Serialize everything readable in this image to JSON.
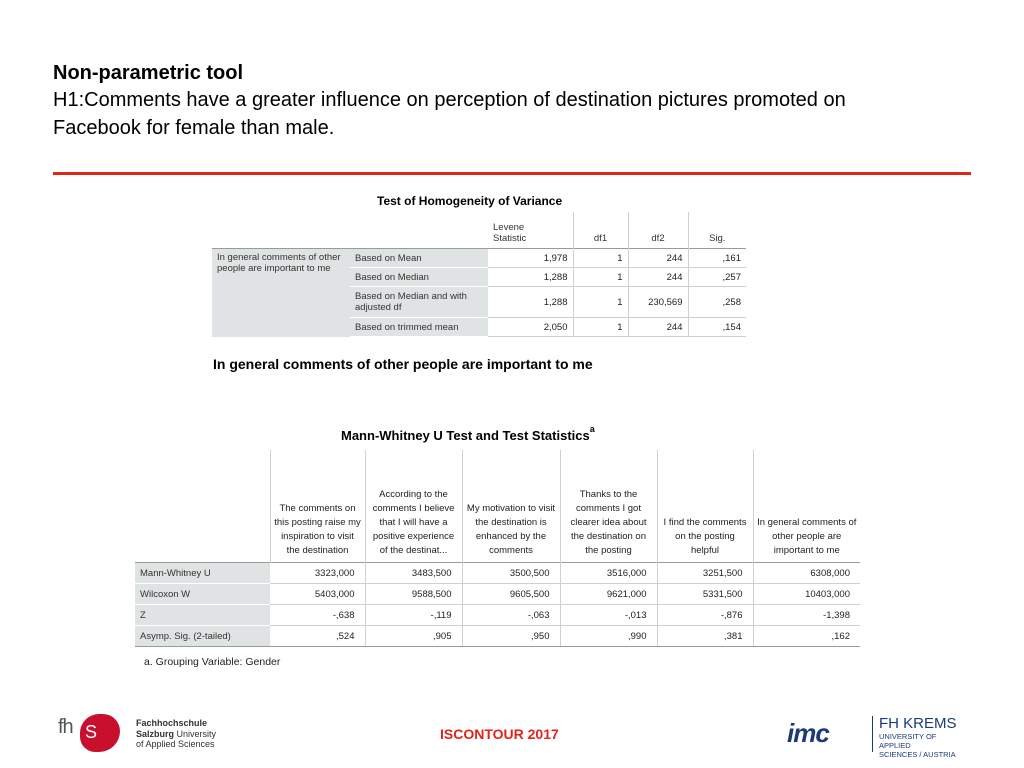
{
  "slide": {
    "title": "Non-parametric tool",
    "hypothesis_line1": "H1:Comments have a greater influence on perception of destination pictures promoted on",
    "hypothesis_line2": "Facebook for female than male."
  },
  "levene": {
    "caption": "Test of Homogeneity of Variance",
    "headers": {
      "stat_line1": "Levene",
      "stat_line2": "Statistic",
      "df1": "df1",
      "df2": "df2",
      "sig": "Sig."
    },
    "variable_label": "In general comments of other people are important to me",
    "rows": [
      {
        "label": "Based on Mean",
        "stat": "1,978",
        "df1": "1",
        "df2": "244",
        "sig": ",161"
      },
      {
        "label": "Based on Median",
        "stat": "1,288",
        "df1": "1",
        "df2": "244",
        "sig": ",257"
      },
      {
        "label": "Based on Median and with adjusted df",
        "stat": "1,288",
        "df1": "1",
        "df2": "230,569",
        "sig": ",258"
      },
      {
        "label": "Based on trimmed mean",
        "stat": "2,050",
        "df1": "1",
        "df2": "244",
        "sig": ",154"
      }
    ]
  },
  "section_heading": "In general comments of other people are important to me",
  "mann_whitney": {
    "caption": "Mann-Whitney U Test and Test Statistics",
    "caption_sup": "a",
    "columns": [
      "The comments on this posting raise my inspiration to visit the destination",
      "According to the comments I believe that I will have a positive experience of the destinat...",
      "My motivation to visit the destination is enhanced by the comments",
      "Thanks to the comments I got clearer idea about the destination on the posting",
      "I find the comments on the posting helpful",
      "In general comments of other people are important to me"
    ],
    "rows": [
      {
        "label": "Mann-Whitney U",
        "values": [
          "3323,000",
          "3483,500",
          "3500,500",
          "3516,000",
          "3251,500",
          "6308,000"
        ]
      },
      {
        "label": "Wilcoxon W",
        "values": [
          "5403,000",
          "9588,500",
          "9605,500",
          "9621,000",
          "5331,500",
          "10403,000"
        ]
      },
      {
        "label": "Z",
        "values": [
          "-,638",
          "-,119",
          "-,063",
          "-,013",
          "-,876",
          "-1,398"
        ]
      },
      {
        "label": "Asymp. Sig. (2-tailed)",
        "values": [
          ",524",
          ",905",
          ",950",
          ",990",
          ",381",
          ",162"
        ]
      }
    ],
    "footnote": "a. Grouping Variable: Gender"
  },
  "footer": {
    "conference": "ISCONTOUR 2017",
    "fhs_mark": "fh",
    "fhs_blob": "S",
    "fhs_line1": "Fachhochschule",
    "fhs_line2a": "Salzburg",
    "fhs_line2b": " University",
    "fhs_line3": "of Applied Sciences",
    "imc_logo": "imc",
    "krems_line1": "FH KREMS",
    "krems_line2": "UNIVERSITY OF APPLIED",
    "krems_line3": "SCIENCES / AUSTRIA"
  },
  "colors": {
    "accent_red": "#e2231a",
    "row_header_gray": "#dfe3e3",
    "imc_blue": "#1b3a7a"
  }
}
